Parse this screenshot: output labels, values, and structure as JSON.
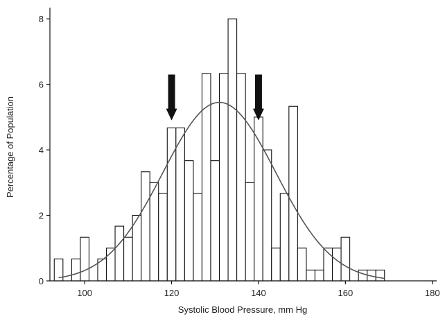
{
  "chart_data": {
    "type": "bar",
    "title": "",
    "xlabel": "Systolic Blood Pressure, mm Hg",
    "ylabel": "Percentage of Population",
    "xlim": [
      92,
      181
    ],
    "ylim": [
      0,
      8.3
    ],
    "x_ticks": [
      100,
      120,
      140,
      160,
      180
    ],
    "x_tick_labels": [
      "100",
      "120",
      "140",
      "160",
      "180"
    ],
    "y_ticks": [
      0,
      2,
      4,
      6,
      8
    ],
    "y_tick_labels": [
      "0",
      "2",
      "4",
      "6",
      "8"
    ],
    "grid": false,
    "legend": "none",
    "bin_width": 2,
    "bins": [
      {
        "x": 94,
        "value": 0.67
      },
      {
        "x": 96,
        "value": 0
      },
      {
        "x": 98,
        "value": 0.67
      },
      {
        "x": 100,
        "value": 1.33
      },
      {
        "x": 102,
        "value": 0
      },
      {
        "x": 104,
        "value": 0.67
      },
      {
        "x": 106,
        "value": 1.0
      },
      {
        "x": 108,
        "value": 1.67
      },
      {
        "x": 110,
        "value": 1.33
      },
      {
        "x": 112,
        "value": 2.0
      },
      {
        "x": 114,
        "value": 3.33
      },
      {
        "x": 116,
        "value": 3.0
      },
      {
        "x": 118,
        "value": 2.67
      },
      {
        "x": 120,
        "value": 4.67
      },
      {
        "x": 122,
        "value": 4.67
      },
      {
        "x": 124,
        "value": 3.67
      },
      {
        "x": 126,
        "value": 2.67
      },
      {
        "x": 128,
        "value": 6.33
      },
      {
        "x": 130,
        "value": 3.67
      },
      {
        "x": 132,
        "value": 6.33
      },
      {
        "x": 134,
        "value": 8.0
      },
      {
        "x": 136,
        "value": 6.33
      },
      {
        "x": 138,
        "value": 3.0
      },
      {
        "x": 140,
        "value": 5.0
      },
      {
        "x": 142,
        "value": 4.0
      },
      {
        "x": 144,
        "value": 1.0
      },
      {
        "x": 146,
        "value": 2.67
      },
      {
        "x": 148,
        "value": 5.33
      },
      {
        "x": 150,
        "value": 1.0
      },
      {
        "x": 152,
        "value": 0.33
      },
      {
        "x": 154,
        "value": 0.33
      },
      {
        "x": 156,
        "value": 1.0
      },
      {
        "x": 158,
        "value": 1.0
      },
      {
        "x": 160,
        "value": 1.33
      },
      {
        "x": 162,
        "value": 0
      },
      {
        "x": 164,
        "value": 0.33
      },
      {
        "x": 166,
        "value": 0.33
      },
      {
        "x": 168,
        "value": 0.33
      }
    ],
    "fitted_curve": {
      "type": "normal",
      "mean": 131,
      "sd": 13,
      "peak": 5.45
    },
    "annotations": [
      {
        "type": "arrow",
        "direction": "down",
        "x": 120,
        "y_from": 6.3,
        "y_to": 4.9
      },
      {
        "type": "arrow",
        "direction": "down",
        "x": 140,
        "y_from": 6.3,
        "y_to": 4.9
      }
    ],
    "colors": {
      "bar_fill": "#ffffff",
      "bar_stroke": "#111111",
      "curve": "#555555",
      "arrow": "#111111",
      "axis": "#111111",
      "text": "#222222"
    }
  }
}
